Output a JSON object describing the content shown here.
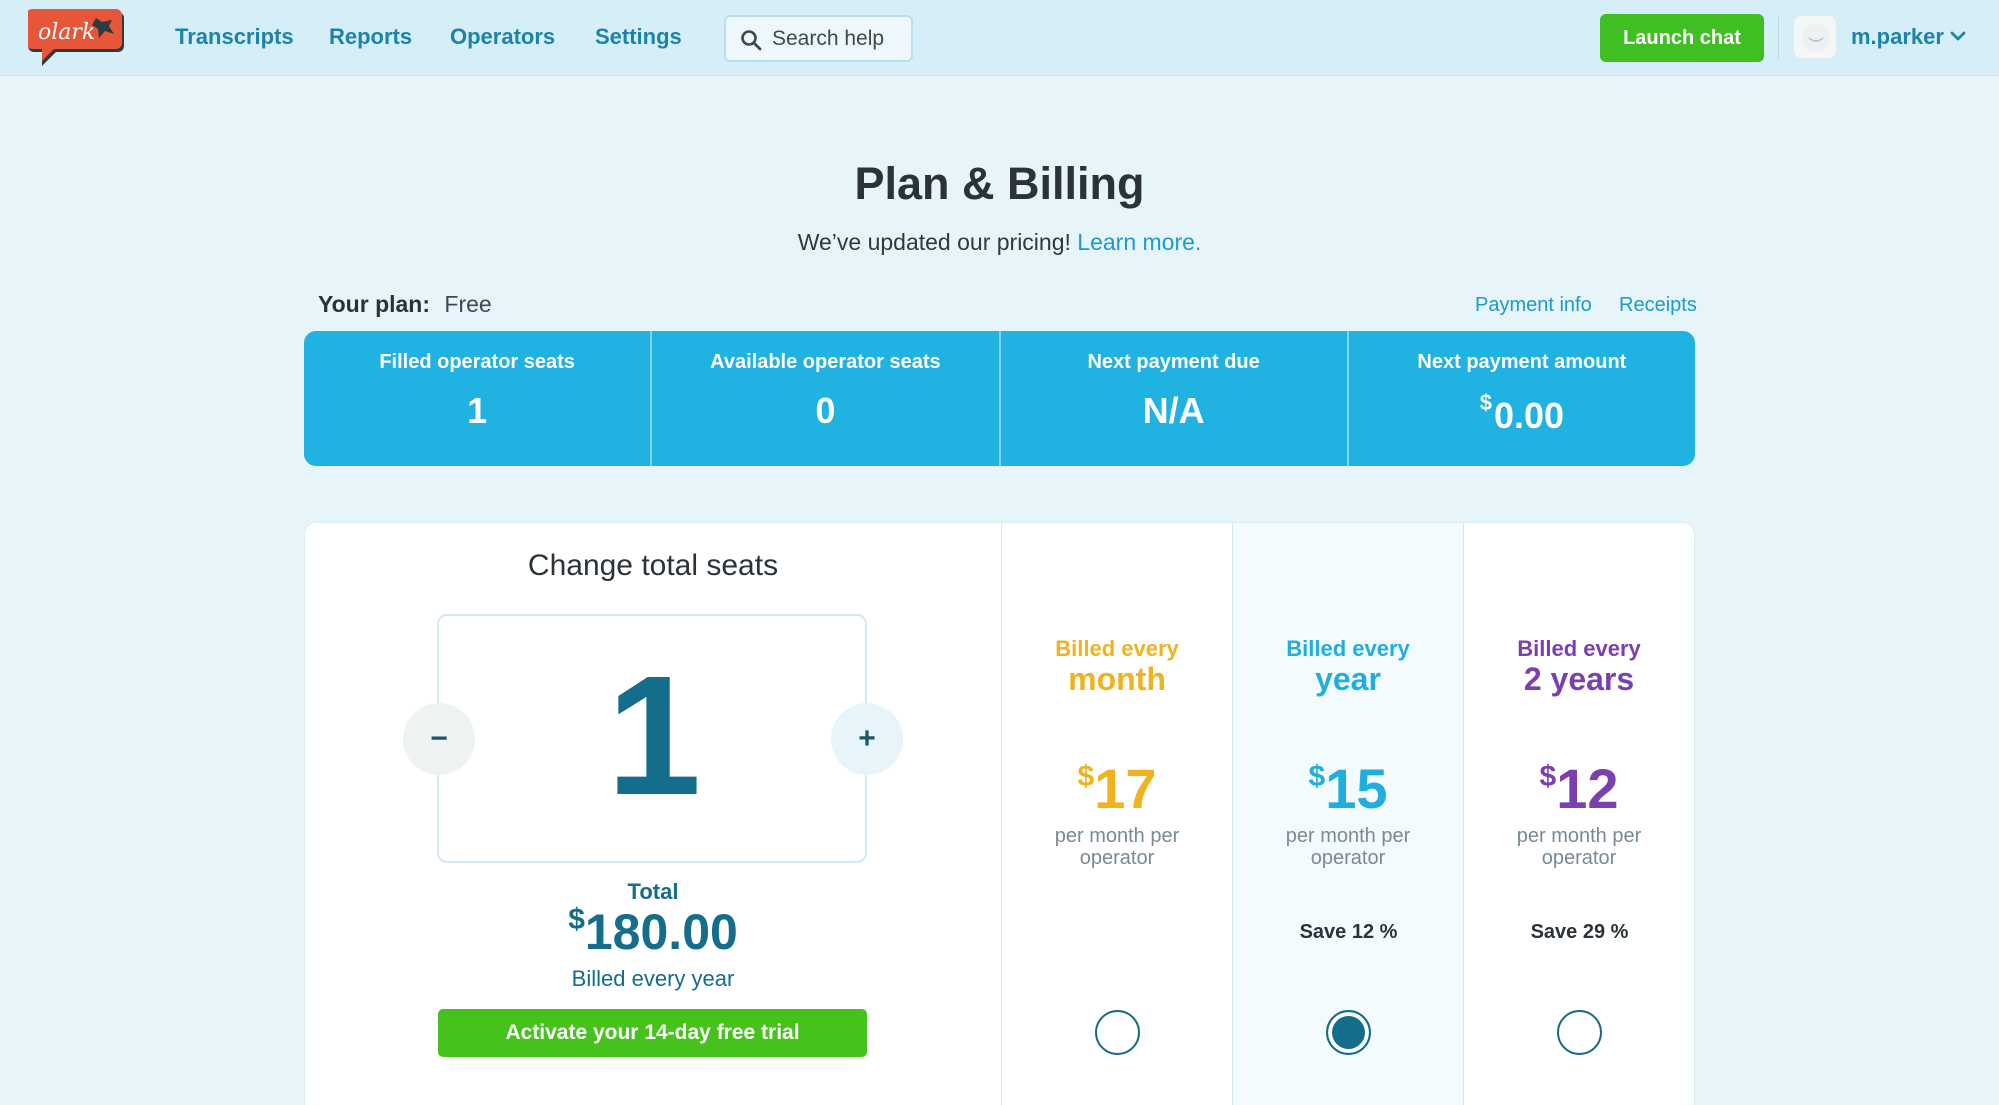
{
  "nav": {
    "logo_text": "olark",
    "links": [
      "Transcripts",
      "Reports",
      "Operators",
      "Settings"
    ],
    "search_placeholder": "Search help",
    "launch_label": "Launch chat",
    "username": "m.parker"
  },
  "header": {
    "title": "Plan & Billing",
    "subtitle_text": "We’ve updated our pricing!",
    "subtitle_link": "Learn more."
  },
  "plan": {
    "label": "Your plan:",
    "value": "Free",
    "payment_info": "Payment info",
    "receipts": "Receipts"
  },
  "stats": [
    {
      "label": "Filled operator seats",
      "value": "1"
    },
    {
      "label": "Available operator seats",
      "value": "0"
    },
    {
      "label": "Next payment due",
      "value": "N/A"
    },
    {
      "label": "Next payment amount",
      "currency": "$",
      "value": "0.00"
    }
  ],
  "seats": {
    "title": "Change total seats",
    "count": "1",
    "minus": "−",
    "plus": "+",
    "total_label": "Total",
    "total_currency": "$",
    "total_amount": "180.00",
    "billed_note": "Billed every year",
    "trial_button": "Activate your 14-day free trial"
  },
  "options": [
    {
      "billed": "Billed every",
      "period": "month",
      "currency": "$",
      "price": "17",
      "per": "per month per operator",
      "save": "",
      "color": "#f0b21e",
      "selected": false
    },
    {
      "billed": "Billed every",
      "period": "year",
      "currency": "$",
      "price": "15",
      "per": "per month per operator",
      "save": "Save 12 %",
      "color": "#20aede",
      "selected": true
    },
    {
      "billed": "Billed every",
      "period": "2 years",
      "currency": "$",
      "price": "12",
      "per": "per month per operator",
      "save": "Save 29 %",
      "color": "#7b3fb0",
      "selected": false
    }
  ],
  "colors": {
    "accent": "#20b2e1",
    "green": "#3fbf22",
    "dark_teal": "#136d8b"
  }
}
